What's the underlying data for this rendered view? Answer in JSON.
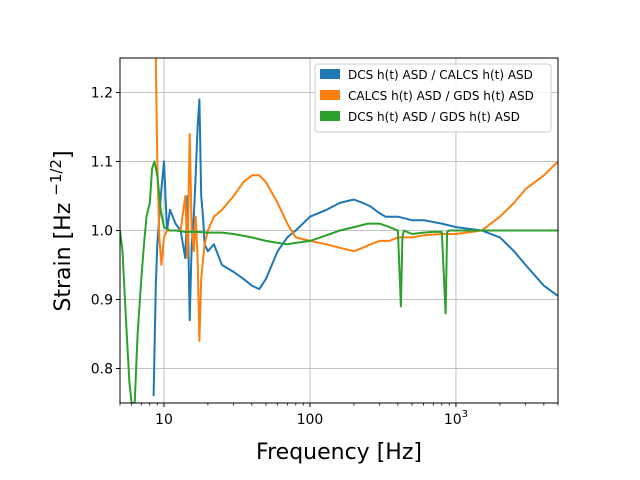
{
  "chart_data": {
    "type": "line",
    "xlabel": "Frequency [Hz]",
    "ylabel_main": "Strain [Hz ",
    "ylabel_exp_prefix": "−1/2",
    "ylabel_close": "]",
    "x_scale": "log",
    "xlim": [
      5,
      5000
    ],
    "ylim": [
      0.75,
      1.25
    ],
    "grid": true,
    "legend_position": "top-right",
    "x_ticks": [
      {
        "value": 10,
        "base": "10",
        "exp": ""
      },
      {
        "value": 100,
        "base": "100",
        "exp": ""
      },
      {
        "value": 1000,
        "base": "10",
        "exp": "3"
      }
    ],
    "y_ticks": [
      {
        "value": 0.8,
        "label": "0.8"
      },
      {
        "value": 0.9,
        "label": "0.9"
      },
      {
        "value": 1.0,
        "label": "1.0"
      },
      {
        "value": 1.1,
        "label": "1.1"
      },
      {
        "value": 1.2,
        "label": "1.2"
      }
    ],
    "series": [
      {
        "name": "DCS h(t) ASD / CALCS h(t) ASD",
        "color": "#1f77b4",
        "x": [
          8.5,
          8.8,
          9.0,
          9.3,
          9.6,
          10.0,
          10.5,
          11.0,
          12.0,
          13.0,
          14.0,
          14.5,
          15.0,
          15.5,
          16.0,
          16.5,
          17.0,
          17.5,
          18.0,
          18.5,
          19.0,
          20.0,
          22.0,
          25.0,
          30.0,
          35.0,
          40.0,
          45.0,
          50.0,
          60.0,
          70.0,
          80.0,
          100.0,
          130.0,
          160.0,
          200.0,
          230.0,
          260.0,
          300.0,
          330.0,
          400.0,
          500.0,
          600.0,
          800.0,
          1000.0,
          1500.0,
          2000.0,
          2500.0,
          3000.0,
          4000.0,
          5000.0
        ],
        "y": [
          0.76,
          0.92,
          0.98,
          1.02,
          1.06,
          1.1,
          1.0,
          1.03,
          1.01,
          1.0,
          0.96,
          1.05,
          0.87,
          0.98,
          1.02,
          1.08,
          1.15,
          1.19,
          1.05,
          1.02,
          0.98,
          0.97,
          0.98,
          0.95,
          0.94,
          0.93,
          0.92,
          0.915,
          0.93,
          0.97,
          0.99,
          1.0,
          1.02,
          1.03,
          1.04,
          1.045,
          1.04,
          1.035,
          1.025,
          1.02,
          1.02,
          1.015,
          1.015,
          1.01,
          1.005,
          1.0,
          0.99,
          0.97,
          0.95,
          0.92,
          0.905
        ]
      },
      {
        "name": "CALCS h(t) ASD / GDS h(t) ASD",
        "color": "#ff7f0e",
        "x": [
          8.8,
          9.0,
          9.3,
          9.6,
          10.0,
          10.5,
          11.0,
          12.0,
          13.0,
          14.0,
          14.5,
          15.0,
          15.5,
          16.0,
          16.5,
          17.0,
          17.5,
          18.0,
          19.0,
          20.0,
          22.0,
          25.0,
          30.0,
          35.0,
          40.0,
          45.0,
          50.0,
          60.0,
          70.0,
          80.0,
          100.0,
          130.0,
          160.0,
          200.0,
          230.0,
          260.0,
          300.0,
          350.0,
          400.0,
          500.0,
          600.0,
          800.0,
          1000.0,
          1500.0,
          2000.0,
          2500.0,
          3000.0,
          4000.0,
          5000.0
        ],
        "y": [
          1.25,
          1.1,
          0.99,
          0.95,
          0.99,
          1.0,
          1.0,
          1.0,
          1.0,
          1.05,
          0.96,
          1.14,
          1.0,
          0.97,
          1.02,
          0.96,
          0.84,
          0.93,
          0.98,
          1.0,
          1.02,
          1.03,
          1.05,
          1.07,
          1.08,
          1.08,
          1.07,
          1.04,
          1.01,
          0.99,
          0.985,
          0.98,
          0.975,
          0.97,
          0.975,
          0.98,
          0.985,
          0.985,
          0.99,
          0.99,
          0.993,
          0.995,
          0.995,
          1.0,
          1.02,
          1.04,
          1.06,
          1.08,
          1.1
        ]
      },
      {
        "name": "DCS h(t) ASD / GDS h(t) ASD",
        "color": "#2ca02c",
        "x": [
          5.0,
          5.2,
          5.5,
          5.8,
          6.0,
          6.3,
          6.6,
          7.0,
          7.3,
          7.6,
          8.0,
          8.3,
          8.6,
          9.0,
          9.5,
          10.0,
          11.0,
          12.0,
          14.0,
          17.0,
          20.0,
          25.0,
          30.0,
          40.0,
          50.0,
          60.0,
          70.0,
          80.0,
          100.0,
          130.0,
          160.0,
          200.0,
          250.0,
          300.0,
          350.0,
          400.0,
          420.0,
          430.0,
          440.0,
          500.0,
          600.0,
          700.0,
          800.0,
          850.0,
          870.0,
          900.0,
          1000.0,
          1500.0,
          2000.0,
          3000.0,
          4000.0,
          5000.0
        ],
        "y": [
          1.0,
          0.97,
          0.87,
          0.78,
          0.75,
          0.75,
          0.85,
          0.93,
          0.98,
          1.02,
          1.04,
          1.09,
          1.1,
          1.08,
          1.03,
          1.005,
          1.0,
          1.0,
          0.998,
          0.998,
          0.997,
          0.997,
          0.995,
          0.99,
          0.985,
          0.982,
          0.98,
          0.982,
          0.985,
          0.993,
          1.0,
          1.005,
          1.01,
          1.01,
          1.005,
          1.0,
          0.89,
          0.99,
          1.0,
          0.995,
          0.997,
          0.998,
          0.998,
          0.88,
          0.998,
          1.0,
          1.0,
          1.0,
          1.0,
          1.0,
          1.0,
          1.0
        ]
      }
    ]
  }
}
